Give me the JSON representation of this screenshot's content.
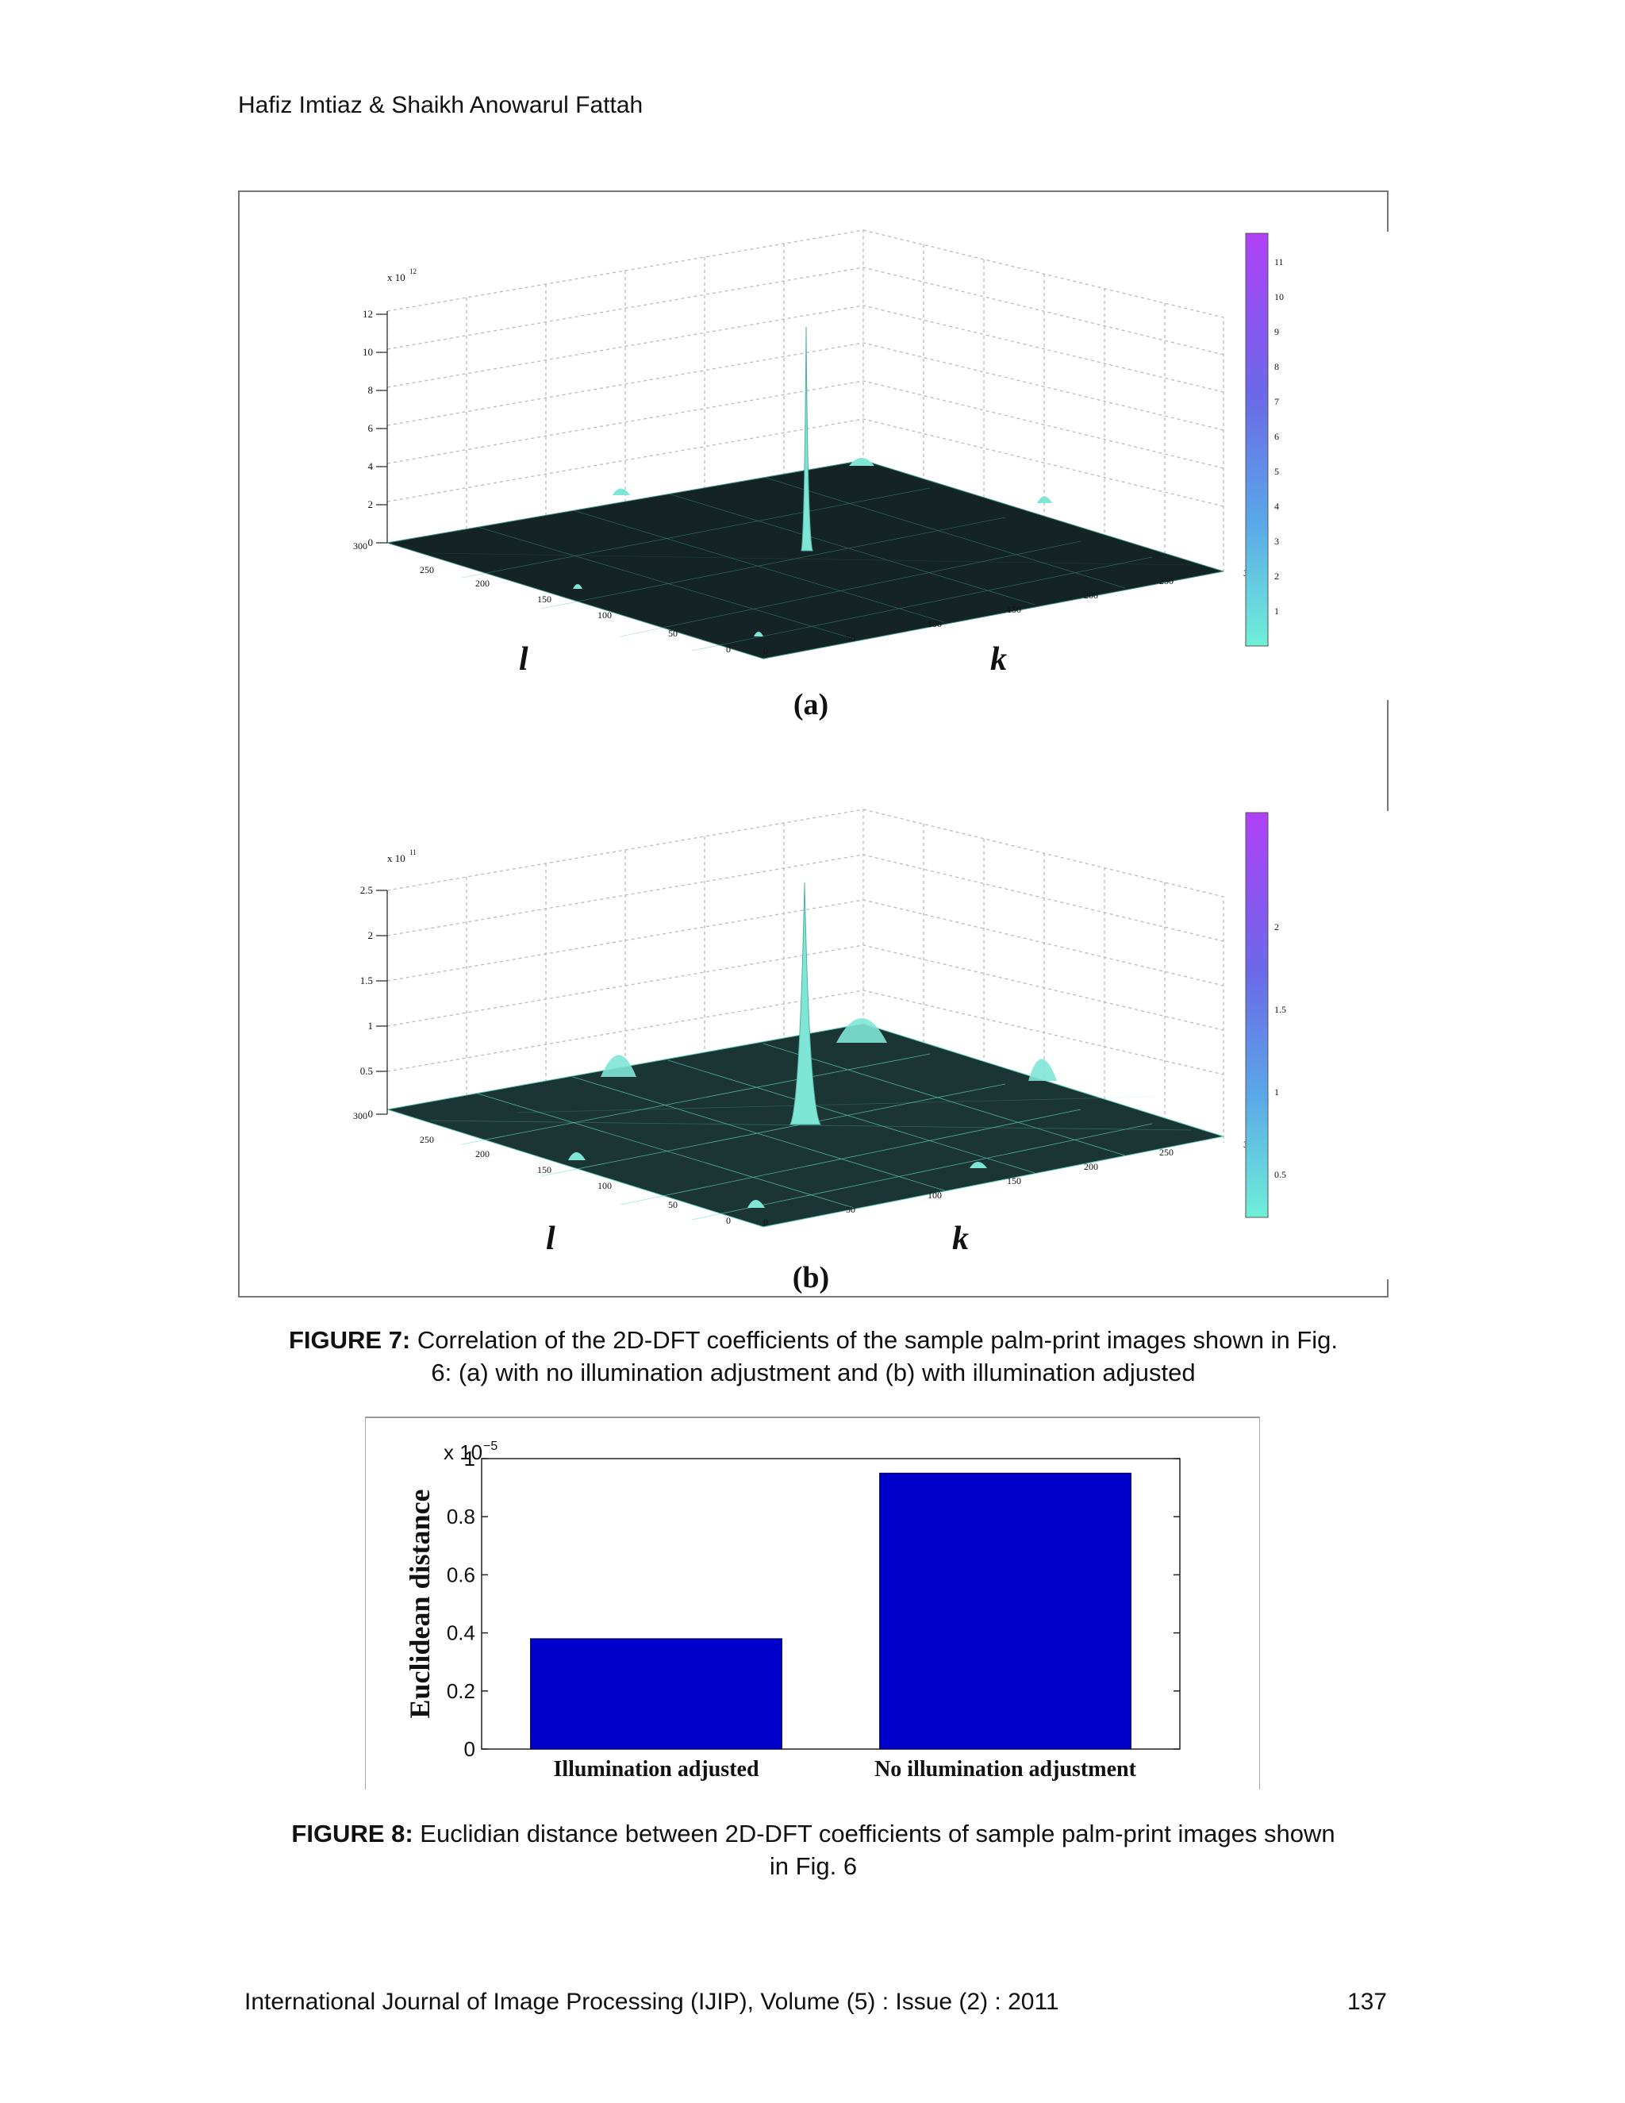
{
  "header": {
    "authors": "Hafiz Imtiaz & Shaikh Anowarul Fattah"
  },
  "figure7": {
    "panel_a": {
      "label": "(a)",
      "z_multiplier": "x 10",
      "z_exponent": "12",
      "z_ticks": [
        "0",
        "2",
        "4",
        "6",
        "8",
        "10",
        "12"
      ],
      "l_ticks": [
        "300",
        "250",
        "200",
        "150",
        "100",
        "50",
        "0"
      ],
      "k_ticks": [
        "0",
        "50",
        "100",
        "150",
        "200",
        "250",
        "3"
      ],
      "l_axis": "l",
      "k_axis": "k",
      "colorbar_ticks": [
        "1",
        "2",
        "3",
        "4",
        "5",
        "6",
        "7",
        "8",
        "9",
        "10",
        "11"
      ],
      "surface_color": "#1a2a2a",
      "mesh_color": "#6fe0cf"
    },
    "panel_b": {
      "label": "(b)",
      "z_multiplier": "x 10",
      "z_exponent": "11",
      "z_ticks": [
        "0",
        "0.5",
        "1",
        "1.5",
        "2",
        "2.5"
      ],
      "l_ticks": [
        "300",
        "250",
        "200",
        "150",
        "100",
        "50",
        "0"
      ],
      "k_ticks": [
        "0",
        "50",
        "100",
        "150",
        "200",
        "250",
        "3"
      ],
      "l_axis": "l",
      "k_axis": "k",
      "colorbar_ticks": [
        "0.5",
        "1",
        "1.5",
        "2"
      ]
    },
    "caption_bold": "FIGURE 7:",
    "caption_line1": " Correlation of the 2D-DFT coefficients of the sample palm-print images shown in Fig.",
    "caption_line2": "6: (a) with no illumination adjustment and (b) with illumination adjusted"
  },
  "figure8": {
    "chart_data": {
      "type": "bar",
      "categories": [
        "Illumination adjusted",
        "No illumination adjustment"
      ],
      "values": [
        0.38,
        0.95
      ],
      "value_scale": "x 10^-5",
      "ylabel": "Euclidean distance",
      "ylim": [
        0,
        1
      ],
      "yticks": [
        "0",
        "0.2",
        "0.4",
        "0.6",
        "0.8",
        "1"
      ],
      "bar_color": "#0000cc",
      "grid": false
    },
    "ylabel": "Euclidean distance",
    "scale_base": "x 10",
    "scale_exp": "−5",
    "caption_bold": "FIGURE 8:",
    "caption_line1": " Euclidian distance between 2D-DFT coefficients of sample palm-print images shown",
    "caption_line2": "in Fig. 6"
  },
  "footer": {
    "journal": "International Journal of Image Processing (IJIP), Volume (5) : Issue (2) : 2011",
    "page_number": "137"
  }
}
